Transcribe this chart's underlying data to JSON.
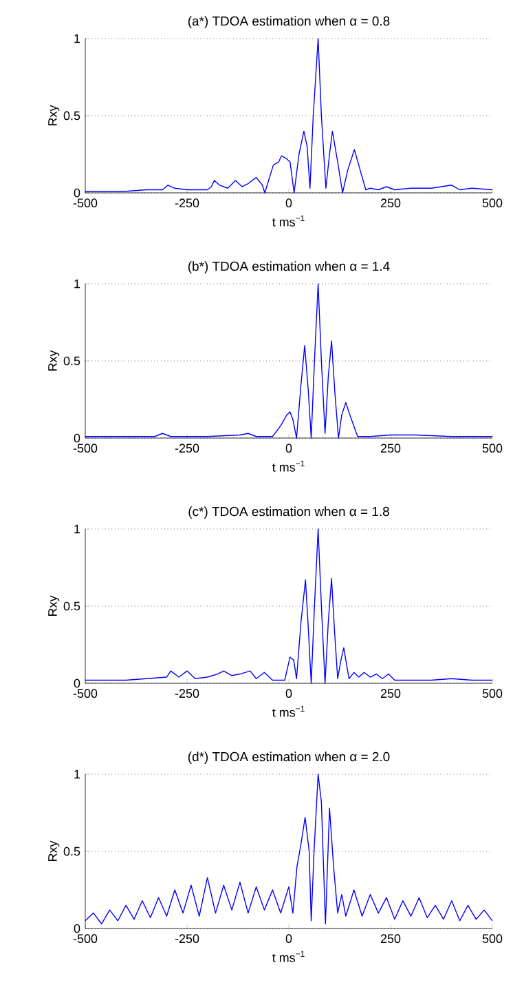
{
  "chart_data": [
    {
      "type": "line",
      "title": "(a*) TDOA estimation when α = 0.8",
      "xlabel": "t ms$^{−1}$",
      "ylabel": "Rxy",
      "xlim": [
        -500,
        500
      ],
      "ylim": [
        0,
        1
      ],
      "xticks": [
        -500,
        -250,
        0,
        250,
        500
      ],
      "yticks": [
        0,
        0.5,
        1
      ],
      "grid": "y",
      "x": [
        -500,
        -450,
        -400,
        -350,
        -310,
        -297,
        -280,
        -250,
        -200,
        -190,
        -183,
        -170,
        -150,
        -131,
        -115,
        -100,
        -80,
        -65,
        -59,
        -45,
        -38,
        -25,
        -18,
        -5,
        3,
        13,
        25,
        37,
        45,
        52,
        60,
        72,
        80,
        91,
        100,
        107,
        120,
        132,
        145,
        161,
        175,
        189,
        200,
        220,
        240,
        260,
        300,
        350,
        400,
        420,
        450,
        500
      ],
      "series": [
        {
          "color": "#0000ff",
          "values": [
            0.01,
            0.01,
            0.01,
            0.02,
            0.02,
            0.05,
            0.03,
            0.02,
            0.02,
            0.04,
            0.08,
            0.05,
            0.03,
            0.08,
            0.04,
            0.06,
            0.1,
            0.05,
            0.0,
            0.12,
            0.18,
            0.2,
            0.24,
            0.22,
            0.2,
            0.0,
            0.25,
            0.4,
            0.3,
            0.03,
            0.5,
            1.0,
            0.5,
            0.03,
            0.25,
            0.4,
            0.2,
            0.0,
            0.15,
            0.28,
            0.15,
            0.02,
            0.03,
            0.02,
            0.04,
            0.02,
            0.03,
            0.03,
            0.05,
            0.02,
            0.03,
            0.02
          ]
        }
      ]
    },
    {
      "type": "line",
      "title": "(b*) TDOA estimation when α = 1.4",
      "xlabel": "t ms$^{−1}$",
      "ylabel": "Rxy",
      "xlim": [
        -500,
        500
      ],
      "ylim": [
        0,
        1
      ],
      "xticks": [
        -500,
        -250,
        0,
        250,
        500
      ],
      "yticks": [
        0,
        0.5,
        1
      ],
      "grid": "y",
      "x": [
        -500,
        -400,
        -330,
        -310,
        -290,
        -200,
        -120,
        -100,
        -80,
        -40,
        -20,
        -5,
        3,
        10,
        19,
        30,
        39,
        48,
        55,
        63,
        72,
        80,
        89,
        97,
        105,
        113,
        122,
        130,
        140,
        150,
        169,
        200,
        250,
        310,
        400,
        500
      ],
      "series": [
        {
          "color": "#0000ff",
          "values": [
            0.01,
            0.01,
            0.01,
            0.03,
            0.01,
            0.01,
            0.02,
            0.03,
            0.01,
            0.01,
            0.08,
            0.15,
            0.17,
            0.12,
            0.0,
            0.35,
            0.6,
            0.3,
            0.0,
            0.5,
            1.0,
            0.5,
            0.03,
            0.4,
            0.63,
            0.3,
            0.0,
            0.15,
            0.23,
            0.15,
            0.01,
            0.01,
            0.02,
            0.02,
            0.01,
            0.01
          ]
        }
      ]
    },
    {
      "type": "line",
      "title": "(c*) TDOA estimation when α = 1.8",
      "xlabel": "t ms$^{−1}$",
      "ylabel": "Rxy",
      "xlim": [
        -500,
        500
      ],
      "ylim": [
        0,
        1
      ],
      "xticks": [
        -500,
        -250,
        0,
        250,
        500
      ],
      "yticks": [
        0,
        0.5,
        1
      ],
      "grid": "y",
      "x": [
        -500,
        -450,
        -400,
        -350,
        -300,
        -290,
        -270,
        -250,
        -230,
        -200,
        -175,
        -160,
        -140,
        -120,
        -95,
        -80,
        -60,
        -40,
        -10,
        3,
        12,
        19,
        30,
        41,
        48,
        55,
        63,
        72,
        80,
        89,
        97,
        105,
        112,
        120,
        128,
        135,
        142,
        148,
        160,
        172,
        185,
        200,
        215,
        230,
        245,
        260,
        300,
        350,
        400,
        450,
        500
      ],
      "series": [
        {
          "color": "#0000ff",
          "values": [
            0.02,
            0.02,
            0.02,
            0.03,
            0.04,
            0.08,
            0.04,
            0.08,
            0.03,
            0.04,
            0.06,
            0.08,
            0.05,
            0.06,
            0.08,
            0.03,
            0.07,
            0.02,
            0.02,
            0.17,
            0.15,
            0.03,
            0.4,
            0.67,
            0.35,
            0.0,
            0.5,
            1.0,
            0.5,
            0.0,
            0.4,
            0.68,
            0.35,
            0.03,
            0.15,
            0.23,
            0.12,
            0.03,
            0.07,
            0.04,
            0.07,
            0.04,
            0.06,
            0.03,
            0.06,
            0.02,
            0.02,
            0.02,
            0.03,
            0.02,
            0.02
          ]
        }
      ]
    },
    {
      "type": "line",
      "title": "(d*) TDOA estimation when α = 2.0",
      "xlabel": "t ms$^{−1}$",
      "ylabel": "Rxy",
      "xlim": [
        -500,
        500
      ],
      "ylim": [
        0,
        1
      ],
      "xticks": [
        -500,
        -250,
        0,
        250,
        500
      ],
      "yticks": [
        0,
        0.5,
        1
      ],
      "grid": "y",
      "x": [
        -500,
        -480,
        -460,
        -440,
        -420,
        -400,
        -380,
        -360,
        -340,
        -320,
        -300,
        -280,
        -260,
        -240,
        -220,
        -200,
        -180,
        -160,
        -140,
        -120,
        -100,
        -80,
        -60,
        -40,
        -20,
        0,
        10,
        20,
        30,
        40,
        50,
        55,
        62,
        72,
        80,
        90,
        100,
        110,
        120,
        130,
        140,
        160,
        180,
        200,
        220,
        240,
        260,
        280,
        300,
        320,
        340,
        360,
        380,
        400,
        420,
        440,
        460,
        480,
        500
      ],
      "series": [
        {
          "color": "#0000ff",
          "values": [
            0.05,
            0.1,
            0.03,
            0.12,
            0.05,
            0.15,
            0.06,
            0.18,
            0.07,
            0.2,
            0.08,
            0.25,
            0.1,
            0.28,
            0.08,
            0.33,
            0.1,
            0.28,
            0.12,
            0.3,
            0.1,
            0.27,
            0.12,
            0.25,
            0.1,
            0.27,
            0.1,
            0.4,
            0.55,
            0.72,
            0.5,
            0.05,
            0.5,
            1.0,
            0.82,
            0.03,
            0.78,
            0.4,
            0.1,
            0.22,
            0.08,
            0.25,
            0.08,
            0.22,
            0.1,
            0.2,
            0.06,
            0.18,
            0.08,
            0.2,
            0.07,
            0.15,
            0.06,
            0.18,
            0.05,
            0.15,
            0.06,
            0.12,
            0.05
          ]
        }
      ]
    }
  ]
}
